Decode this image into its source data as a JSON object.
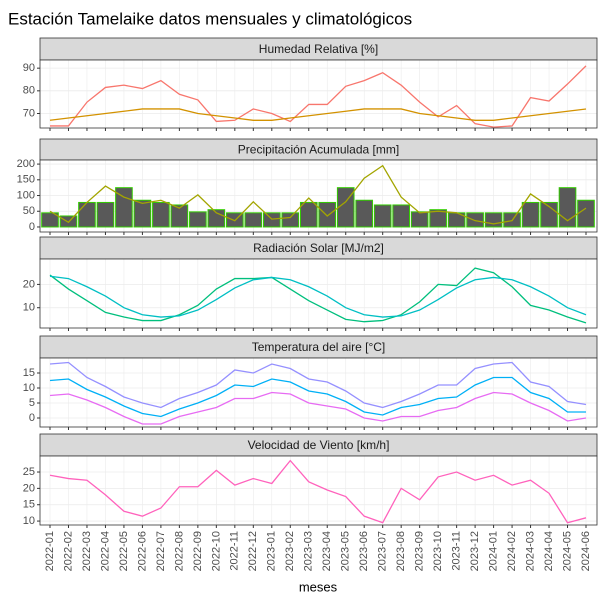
{
  "title": "Estación Tamelaike datos mensuales y climatológicos",
  "x_label": "meses",
  "categories": [
    "2022-01",
    "2022-02",
    "2022-03",
    "2022-04",
    "2022-05",
    "2022-06",
    "2022-07",
    "2022-08",
    "2022-09",
    "2022-10",
    "2022-11",
    "2022-12",
    "2023-01",
    "2023-02",
    "2023-03",
    "2023-04",
    "2023-05",
    "2023-06",
    "2023-07",
    "2023-08",
    "2023-09",
    "2023-10",
    "2023-11",
    "2023-12",
    "2024-01",
    "2024-02",
    "2024-03",
    "2024-04",
    "2024-05",
    "2024-06"
  ],
  "chart_data": [
    {
      "type": "line",
      "title": "Humedad Relativa [%]",
      "ylim": [
        63.6,
        93.6
      ],
      "yticks": [
        70,
        80,
        90
      ],
      "grid": true,
      "series": [
        {
          "type": "line",
          "color": "#F8766D",
          "values": [
            64.5,
            64.5,
            75,
            81.5,
            82.5,
            81,
            84.5,
            78.5,
            76,
            66.5,
            67,
            72,
            70,
            66.5,
            74,
            74,
            82,
            84.5,
            88,
            82.5,
            75,
            68.5,
            73.5,
            65.5,
            64,
            64.5,
            77,
            75.5,
            83,
            91
          ]
        },
        {
          "type": "line",
          "color": "#D39200",
          "values": [
            67,
            68,
            69,
            70,
            71,
            72,
            72,
            72,
            70,
            69,
            68,
            67,
            67,
            68,
            69,
            70,
            71,
            72,
            72,
            72,
            70,
            69,
            68,
            67,
            67,
            68,
            69,
            70,
            71,
            72
          ]
        }
      ]
    },
    {
      "type": "combo",
      "title": "Precipitación Acumulada [mm]",
      "ylim": [
        -16,
        213
      ],
      "yticks": [
        0,
        50,
        100,
        150,
        200
      ],
      "grid": true,
      "series": [
        {
          "type": "bar",
          "color": "#595959",
          "edge_color": "#33CC00",
          "values": [
            45,
            35,
            78,
            78,
            125,
            85,
            78,
            70,
            48,
            55,
            45,
            45,
            45,
            45,
            78,
            78,
            125,
            85,
            70,
            70,
            48,
            55,
            45,
            45,
            45,
            45,
            78,
            78,
            125,
            85
          ]
        },
        {
          "type": "line",
          "color": "#A3A500",
          "values": [
            50,
            15,
            78,
            130,
            95,
            75,
            85,
            60,
            102,
            45,
            20,
            80,
            25,
            30,
            92,
            35,
            80,
            155,
            195,
            95,
            45,
            50,
            45,
            20,
            10,
            20,
            105,
            65,
            20,
            60
          ]
        }
      ]
    },
    {
      "type": "line",
      "title": "Radiación Solar [MJ/m2]",
      "ylim": [
        1.3,
        30.9
      ],
      "yticks": [
        10,
        20
      ],
      "grid": true,
      "series": [
        {
          "type": "line",
          "color": "#00BF7D",
          "values": [
            24,
            18,
            13,
            8,
            6,
            4.5,
            4.5,
            7,
            11,
            18,
            22.5,
            22.5,
            23,
            18,
            13,
            9,
            5,
            4,
            4.5,
            7,
            12.5,
            20,
            19.5,
            27,
            25,
            19,
            11,
            9,
            6,
            3.5
          ]
        },
        {
          "type": "line",
          "color": "#00BFC4",
          "values": [
            23.5,
            22.5,
            19,
            15,
            10,
            7,
            6,
            6.5,
            9,
            13.5,
            18.5,
            22,
            23,
            22,
            19,
            15,
            10,
            7,
            6,
            6.5,
            9,
            13.5,
            18.5,
            22,
            23,
            22,
            19,
            15,
            10,
            7
          ]
        }
      ]
    },
    {
      "type": "line",
      "title": "Temperatura del aire [°C]",
      "ylim": [
        -3,
        20
      ],
      "yticks": [
        0,
        5,
        10,
        15
      ],
      "grid": true,
      "series": [
        {
          "type": "line",
          "color": "#9590FF",
          "values": [
            18,
            18.5,
            13.5,
            10.5,
            7,
            5,
            3.5,
            6.5,
            8.5,
            11,
            16,
            15,
            18,
            16.5,
            13,
            12,
            9,
            5,
            3.5,
            5.5,
            8,
            11,
            11,
            16.5,
            18,
            18.5,
            12,
            10.5,
            5.5,
            4.5
          ]
        },
        {
          "type": "line",
          "color": "#00B0F6",
          "values": [
            12.5,
            13,
            9.5,
            7,
            4,
            1.5,
            0.5,
            3,
            5,
            7.5,
            11,
            10.5,
            13,
            12,
            9,
            8,
            5.5,
            2,
            1,
            3.5,
            4.5,
            6.5,
            7,
            11,
            13.5,
            13.5,
            8.5,
            6.5,
            2,
            2
          ]
        },
        {
          "type": "line",
          "color": "#E76BF3",
          "values": [
            7.5,
            8,
            6,
            3.5,
            0.5,
            -2,
            -2,
            0.5,
            2,
            3.5,
            6.5,
            6.5,
            8.5,
            8,
            5,
            4,
            3,
            0,
            -1,
            0.5,
            0.5,
            2.5,
            3.5,
            6.5,
            8.5,
            8,
            5,
            2.5,
            -1,
            0
          ]
        }
      ]
    },
    {
      "type": "line",
      "title": "Velocidad de Viento [km/h]",
      "ylim": [
        8.8,
        29.9
      ],
      "yticks": [
        10,
        15,
        20,
        25
      ],
      "grid": true,
      "series": [
        {
          "type": "line",
          "color": "#FF62BC",
          "values": [
            24,
            23,
            22.5,
            18,
            13,
            11.5,
            14,
            20.5,
            20.5,
            25.5,
            21,
            23,
            21.5,
            28.5,
            22,
            19.5,
            17.5,
            11.5,
            9.5,
            20,
            16.5,
            23.5,
            25,
            22.5,
            24,
            21,
            22.5,
            18.5,
            9.5,
            11
          ]
        }
      ]
    }
  ]
}
